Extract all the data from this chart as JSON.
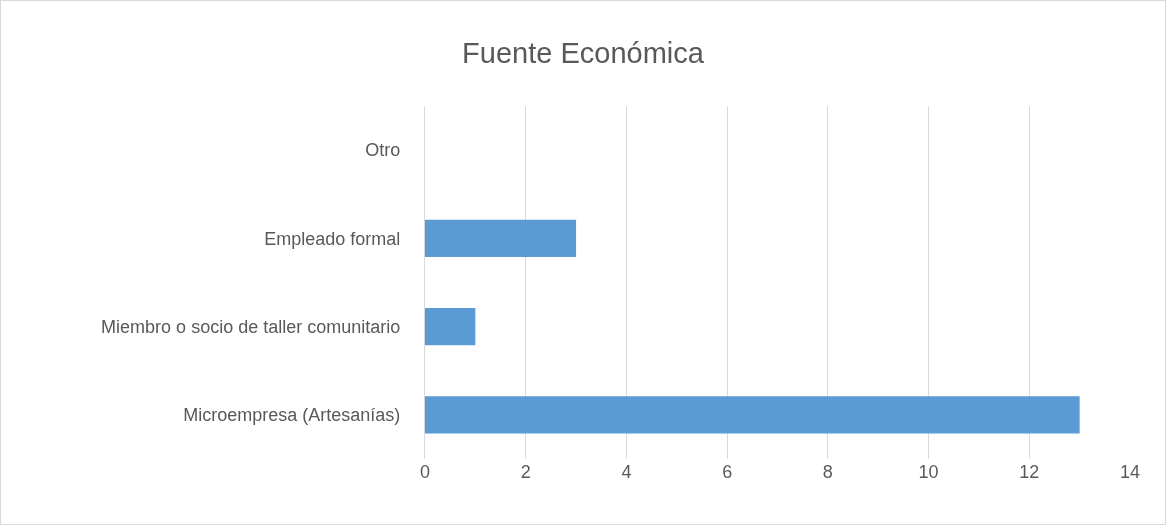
{
  "chart_data": {
    "type": "bar",
    "orientation": "horizontal",
    "title": "Fuente Económica",
    "categories": [
      "Otro",
      "Empleado formal",
      "Miembro o socio de taller comunitario",
      "Microempresa (Artesanías)"
    ],
    "values": [
      0,
      3,
      1,
      13
    ],
    "color": "#5b9bd5",
    "xlim": [
      0,
      14
    ],
    "xticks": [
      0,
      2,
      4,
      6,
      8,
      10,
      12,
      14
    ],
    "grid": "x"
  }
}
